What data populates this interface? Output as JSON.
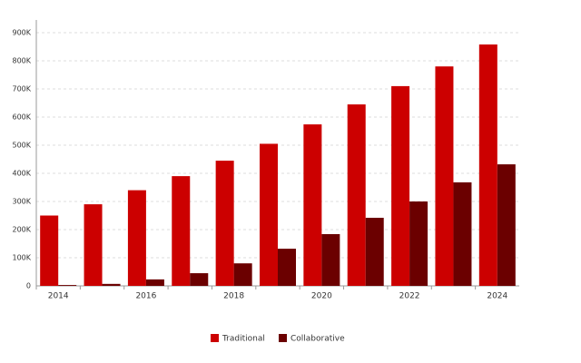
{
  "chart_data": {
    "type": "bar",
    "categories": [
      "2014",
      null,
      "2016",
      null,
      "2018",
      null,
      "2020",
      null,
      "2022",
      null,
      "2024"
    ],
    "series": [
      {
        "name": "Traditional",
        "color": "#cc0000",
        "values": [
          250000,
          290000,
          340000,
          390000,
          445000,
          505000,
          574000,
          645000,
          710000,
          780000,
          858000
        ]
      },
      {
        "name": "Collaborative",
        "color": "#6b0000",
        "values": [
          3000,
          7000,
          23000,
          45000,
          80000,
          132000,
          184000,
          242000,
          300000,
          368000,
          432000
        ]
      }
    ],
    "ylim": [
      0,
      900000
    ],
    "yticks": [
      0,
      {
        "value": 100000,
        "label": "100K"
      },
      {
        "value": 200000,
        "label": "200K"
      },
      {
        "value": 300000,
        "label": "300K"
      },
      {
        "value": 400000,
        "label": "400K"
      },
      {
        "value": 500000,
        "label": "500K"
      },
      {
        "value": 600000,
        "label": "600K"
      },
      {
        "value": 700000,
        "label": "700K"
      },
      {
        "value": 800000,
        "label": "800K"
      },
      {
        "value": 900000,
        "label": "900K"
      }
    ],
    "grid": true,
    "legend": "bottom"
  }
}
